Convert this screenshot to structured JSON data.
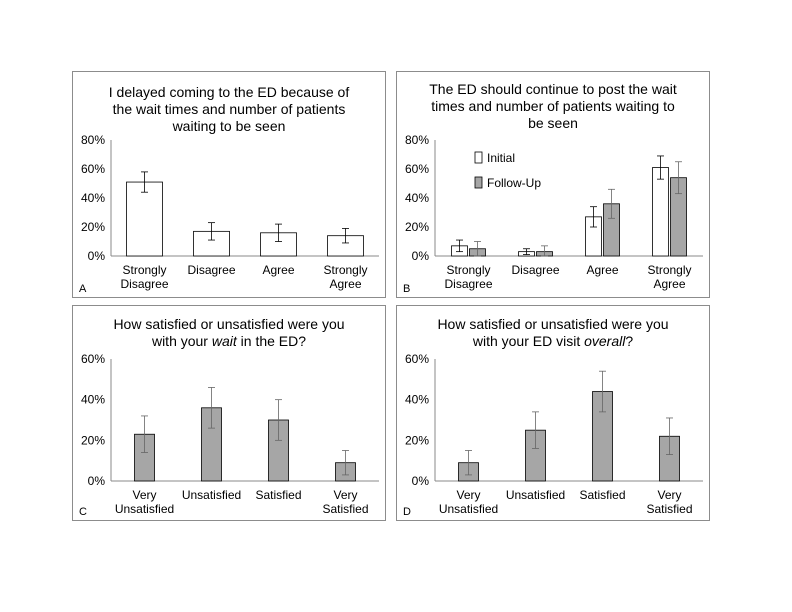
{
  "chart_data": [
    {
      "panel_label": "A",
      "type": "bar",
      "title": "I delayed coming to the ED because of the wait times and number of patients waiting to be seen",
      "categories": [
        [
          "Strongly",
          "Disagree"
        ],
        [
          "Disagree"
        ],
        [
          "Agree"
        ],
        [
          "Strongly",
          "Agree"
        ]
      ],
      "yticks": [
        "0%",
        "20%",
        "40%",
        "60%",
        "80%"
      ],
      "ylim": [
        0,
        80
      ],
      "series": [
        {
          "color": "#ffffff",
          "values": [
            51,
            17,
            16,
            14
          ],
          "err": [
            7,
            6,
            6,
            5
          ]
        }
      ]
    },
    {
      "panel_label": "B",
      "type": "bar",
      "title": "The ED should continue to post the wait times and number of patients waiting to be seen",
      "categories": [
        [
          "Strongly",
          "Disagree"
        ],
        [
          "Disagree"
        ],
        [
          "Agree"
        ],
        [
          "Strongly",
          "Agree"
        ]
      ],
      "yticks": [
        "0%",
        "20%",
        "40%",
        "60%",
        "80%"
      ],
      "ylim": [
        0,
        80
      ],
      "legend_position": "top-left",
      "series": [
        {
          "name": "Initial",
          "color": "#ffffff",
          "values": [
            7,
            3,
            27,
            61
          ],
          "err": [
            4,
            2,
            7,
            8
          ]
        },
        {
          "name": "Follow-Up",
          "color": "#a6a6a6",
          "values": [
            5,
            3,
            36,
            54
          ],
          "err": [
            5,
            4,
            10,
            11
          ]
        }
      ]
    },
    {
      "panel_label": "C",
      "type": "bar",
      "title_parts": [
        "How satisfied or unsatisfied were you",
        "with your ",
        "wait",
        " in the ED?"
      ],
      "categories": [
        [
          "Very",
          "Unsatisfied"
        ],
        [
          "Unsatisfied"
        ],
        [
          "Satisfied"
        ],
        [
          "Very",
          "Satisfied"
        ]
      ],
      "yticks": [
        "0%",
        "20%",
        "40%",
        "60%"
      ],
      "ylim": [
        0,
        60
      ],
      "series": [
        {
          "color": "#a6a6a6",
          "values": [
            23,
            36,
            30,
            9
          ],
          "err": [
            9,
            10,
            10,
            6
          ]
        }
      ]
    },
    {
      "panel_label": "D",
      "type": "bar",
      "title_parts": [
        "How satisfied or unsatisfied were you",
        "with your ED visit ",
        "overall",
        "?"
      ],
      "categories": [
        [
          "Very",
          "Unsatisfied"
        ],
        [
          "Unsatisfied"
        ],
        [
          "Satisfied"
        ],
        [
          "Very",
          "Satisfied"
        ]
      ],
      "yticks": [
        "0%",
        "20%",
        "40%",
        "60%"
      ],
      "ylim": [
        0,
        60
      ],
      "series": [
        {
          "color": "#a6a6a6",
          "values": [
            9,
            25,
            44,
            22
          ],
          "err": [
            6,
            9,
            10,
            9
          ]
        }
      ]
    }
  ]
}
